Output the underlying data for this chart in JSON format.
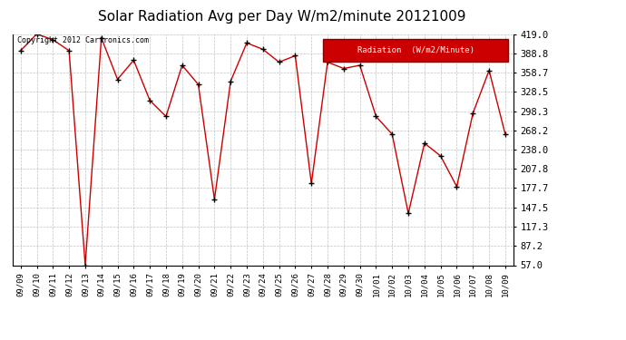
{
  "title": "Solar Radiation Avg per Day W/m2/minute 20121009",
  "copyright_text": "Copyright 2012 Cartronics.com",
  "legend_label": "Radiation  (W/m2/Minute)",
  "x_labels": [
    "09/09",
    "09/10",
    "09/11",
    "09/12",
    "09/13",
    "09/14",
    "09/15",
    "09/16",
    "09/17",
    "09/18",
    "09/19",
    "09/20",
    "09/21",
    "09/22",
    "09/23",
    "09/24",
    "09/25",
    "09/26",
    "09/27",
    "09/28",
    "09/29",
    "09/30",
    "10/01",
    "10/02",
    "10/03",
    "10/04",
    "10/05",
    "10/06",
    "10/07",
    "10/08",
    "10/09"
  ],
  "y_values": [
    393,
    419,
    410,
    393,
    57,
    413,
    348,
    378,
    315,
    290,
    370,
    340,
    160,
    345,
    405,
    395,
    375,
    385,
    185,
    375,
    365,
    370,
    290,
    262,
    138,
    248,
    228,
    180,
    295,
    362,
    262
  ],
  "y_ticks": [
    57.0,
    87.2,
    117.3,
    147.5,
    177.7,
    207.8,
    238.0,
    268.2,
    298.3,
    328.5,
    358.7,
    388.8,
    419.0
  ],
  "y_min": 57.0,
  "y_max": 419.0,
  "line_color": "#cc0000",
  "marker_color": "#000000",
  "bg_color": "#ffffff",
  "grid_color": "#bbbbbb",
  "title_fontsize": 11,
  "legend_bg": "#cc0000",
  "legend_text_color": "#ffffff"
}
